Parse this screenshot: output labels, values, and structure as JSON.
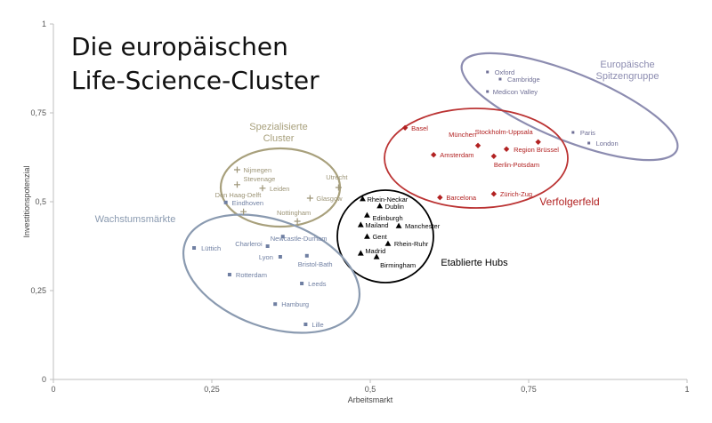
{
  "title_lines": [
    "Die europäischen",
    "Life-Science-Cluster"
  ],
  "chart_data": {
    "type": "scatter",
    "xlabel": "Arbeitsmarkt",
    "ylabel": "Investitionspotenzial",
    "xlim": [
      0,
      1
    ],
    "ylim": [
      0,
      1
    ],
    "xticks": [
      "0",
      "0,25",
      "0,5",
      "0,75",
      "1"
    ],
    "yticks": [
      "0",
      "0,25",
      "0,5",
      "0,75",
      "1"
    ],
    "grid": false,
    "groups": [
      {
        "name": "Europäische Spitzengruppe",
        "label_lines": [
          "Europäische",
          "Spitzengruppe"
        ],
        "color": "#6f6f96",
        "marker": "dot",
        "points": [
          {
            "label": "Oxford",
            "x": 0.685,
            "y": 0.865
          },
          {
            "label": "Cambridge",
            "x": 0.705,
            "y": 0.845
          },
          {
            "label": "Medicon Valley",
            "x": 0.685,
            "y": 0.81
          },
          {
            "label": "Paris",
            "x": 0.82,
            "y": 0.695
          },
          {
            "label": "London",
            "x": 0.845,
            "y": 0.665
          }
        ]
      },
      {
        "name": "Verfolgerfeld",
        "label_lines": [
          "Verfolgerfeld"
        ],
        "color": "#b22222",
        "marker": "diamond",
        "points": [
          {
            "label": "Basel",
            "x": 0.555,
            "y": 0.708
          },
          {
            "label": "München",
            "x": 0.67,
            "y": 0.658
          },
          {
            "label": "Stockholm-Uppsala",
            "x": 0.765,
            "y": 0.668
          },
          {
            "label": "Region Brüssel",
            "x": 0.715,
            "y": 0.648
          },
          {
            "label": "Amsterdam",
            "x": 0.6,
            "y": 0.632
          },
          {
            "label": "Berlin-Potsdam",
            "x": 0.695,
            "y": 0.628
          },
          {
            "label": "Barcelona",
            "x": 0.61,
            "y": 0.512
          },
          {
            "label": "Zürich-Zug",
            "x": 0.695,
            "y": 0.522
          }
        ]
      },
      {
        "name": "Etablierte Hubs",
        "label_lines": [
          "Etablierte Hubs"
        ],
        "color": "#000000",
        "marker": "triangle",
        "points": [
          {
            "label": "Rhein-Neckar",
            "x": 0.488,
            "y": 0.508
          },
          {
            "label": "Dublin",
            "x": 0.515,
            "y": 0.488
          },
          {
            "label": "Edinburgh",
            "x": 0.495,
            "y": 0.462
          },
          {
            "label": "Mailand",
            "x": 0.485,
            "y": 0.435
          },
          {
            "label": "Manchester",
            "x": 0.545,
            "y": 0.432
          },
          {
            "label": "Gent",
            "x": 0.495,
            "y": 0.402
          },
          {
            "label": "Rhein-Ruhr",
            "x": 0.528,
            "y": 0.382
          },
          {
            "label": "Madrid",
            "x": 0.485,
            "y": 0.355
          },
          {
            "label": "Birmingham",
            "x": 0.51,
            "y": 0.345
          }
        ]
      },
      {
        "name": "Spezialisierte Cluster",
        "label_lines": [
          "Spezialisierte",
          "Cluster"
        ],
        "color": "#9c9476",
        "marker": "plus",
        "points": [
          {
            "label": "Nijmegen",
            "x": 0.29,
            "y": 0.59
          },
          {
            "label": "Stevenage",
            "x": 0.29,
            "y": 0.548
          },
          {
            "label": "Leiden",
            "x": 0.33,
            "y": 0.538
          },
          {
            "label": "Utrecht",
            "x": 0.45,
            "y": 0.54
          },
          {
            "label": "Glasgow",
            "x": 0.405,
            "y": 0.51
          },
          {
            "label": "Den Haag-Delft",
            "x": 0.3,
            "y": 0.472
          },
          {
            "label": "Nottingham",
            "x": 0.385,
            "y": 0.445
          }
        ]
      },
      {
        "name": "Wachstumsmärkte",
        "label_lines": [
          "Wachstumsmärkte"
        ],
        "color": "#6f7fa2",
        "marker": "square",
        "points": [
          {
            "label": "Eindhoven",
            "x": 0.272,
            "y": 0.498
          },
          {
            "label": "Lüttich",
            "x": 0.222,
            "y": 0.37
          },
          {
            "label": "Charleroi",
            "x": 0.338,
            "y": 0.375
          },
          {
            "label": "Newcastle-Durham",
            "x": 0.362,
            "y": 0.402
          },
          {
            "label": "Lyon",
            "x": 0.358,
            "y": 0.345
          },
          {
            "label": "Bristol-Bath",
            "x": 0.4,
            "y": 0.348
          },
          {
            "label": "Rotterdam",
            "x": 0.278,
            "y": 0.295
          },
          {
            "label": "Leeds",
            "x": 0.392,
            "y": 0.27
          },
          {
            "label": "Hamburg",
            "x": 0.35,
            "y": 0.212
          },
          {
            "label": "Lille",
            "x": 0.398,
            "y": 0.155
          }
        ]
      }
    ]
  }
}
